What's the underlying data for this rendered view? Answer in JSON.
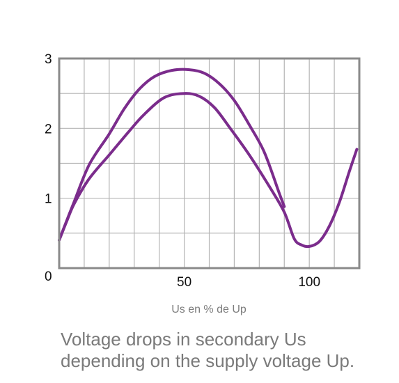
{
  "chart_data": {
    "type": "line",
    "title": "",
    "xlabel": "Us en % de Up",
    "ylabel": "",
    "xlim": [
      0,
      120
    ],
    "ylim": [
      0,
      3
    ],
    "grid": true,
    "x_ticks": [
      50,
      100
    ],
    "y_ticks": [
      0,
      1,
      2,
      3
    ],
    "line_color": "#7b2c8c",
    "grid_color": "#b4b4b4",
    "series": [
      {
        "values": [
          [
            0,
            0.4
          ],
          [
            3,
            0.68
          ],
          [
            6,
            0.95
          ],
          [
            12,
            1.48
          ],
          [
            20,
            1.92
          ],
          [
            26,
            2.28
          ],
          [
            32,
            2.56
          ],
          [
            38,
            2.74
          ],
          [
            45,
            2.83
          ],
          [
            52,
            2.84
          ],
          [
            58,
            2.79
          ],
          [
            64,
            2.64
          ],
          [
            70,
            2.4
          ],
          [
            76,
            2.05
          ],
          [
            82,
            1.66
          ],
          [
            88,
            1.07
          ],
          [
            90,
            0.88
          ]
        ]
      },
      {
        "values": [
          [
            0,
            0.4
          ],
          [
            3,
            0.67
          ],
          [
            6,
            0.92
          ],
          [
            12,
            1.28
          ],
          [
            20,
            1.62
          ],
          [
            28,
            1.96
          ],
          [
            34,
            2.2
          ],
          [
            42,
            2.44
          ],
          [
            50,
            2.5
          ],
          [
            56,
            2.46
          ],
          [
            62,
            2.3
          ],
          [
            68,
            2.02
          ],
          [
            76,
            1.62
          ],
          [
            84,
            1.17
          ],
          [
            90,
            0.8
          ],
          [
            94,
            0.42
          ],
          [
            97,
            0.33
          ],
          [
            100,
            0.31
          ],
          [
            104,
            0.38
          ],
          [
            108,
            0.6
          ],
          [
            112,
            0.94
          ],
          [
            116,
            1.38
          ],
          [
            119,
            1.7
          ]
        ]
      }
    ]
  },
  "caption": {
    "line1": "Voltage drops in secondary Us",
    "line2": "depending on the supply voltage Up."
  }
}
